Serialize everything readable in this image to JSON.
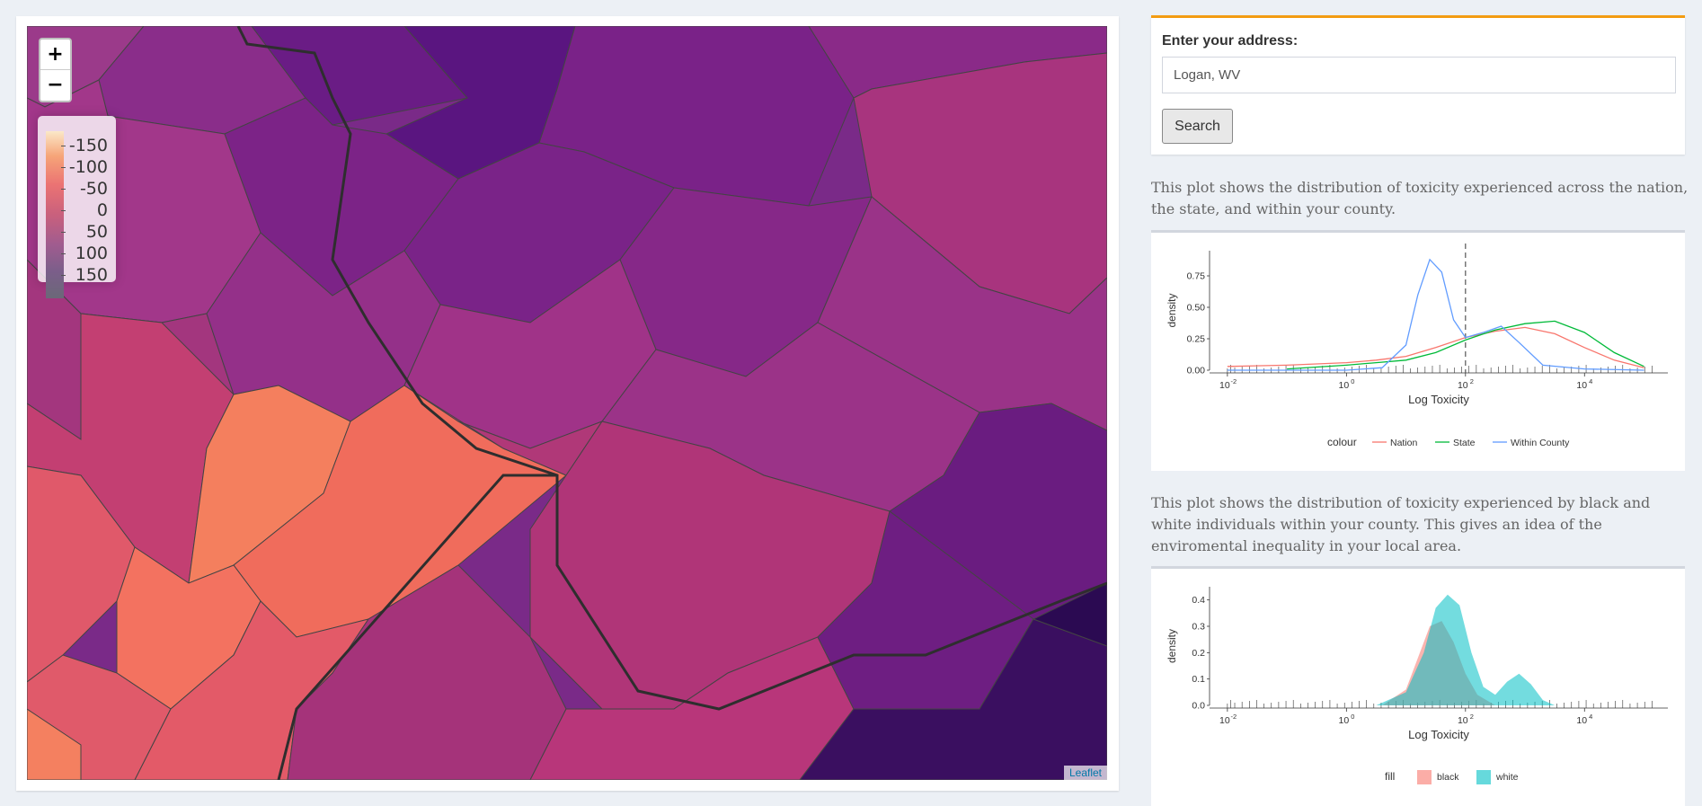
{
  "map": {
    "legend_labels": [
      "-150",
      "-100",
      "-50",
      "0",
      "50",
      "100",
      "150"
    ],
    "zoom_in_label": "+",
    "zoom_out_label": "−",
    "attribution": "Leaflet",
    "colors": {
      "low": "#fbe8c8",
      "high": "#6b6878"
    }
  },
  "search": {
    "label": "Enter your address:",
    "value": "Logan, WV",
    "button_label": "Search"
  },
  "plot1": {
    "description": "This plot shows the distribution of toxicity experienced across the nation, the state, and within your county.",
    "chart_data": {
      "type": "line",
      "xlabel": "Log Toxicity",
      "ylabel": "density",
      "x_ticks": [
        "10",
        "10",
        "10",
        "10"
      ],
      "x_tick_exponents": [
        "-2",
        "0",
        "2",
        "4"
      ],
      "y_ticks": [
        "0.00",
        "0.25",
        "0.50",
        "0.75"
      ],
      "ylim": [
        0,
        0.95
      ],
      "legend_title": "colour",
      "series": [
        {
          "name": "Nation",
          "color": "#f8766d",
          "log_x": [
            -2,
            -1,
            0,
            0.5,
            1,
            1.5,
            2,
            2.5,
            3,
            3.5,
            4,
            4.5,
            5
          ],
          "y": [
            0.03,
            0.04,
            0.06,
            0.08,
            0.11,
            0.18,
            0.26,
            0.31,
            0.34,
            0.29,
            0.18,
            0.08,
            0.02
          ]
        },
        {
          "name": "State",
          "color": "#00ba38",
          "log_x": [
            -1,
            0,
            0.5,
            1,
            1.5,
            2,
            2.5,
            3,
            3.5,
            4,
            4.5,
            5
          ],
          "y": [
            0.01,
            0.04,
            0.06,
            0.08,
            0.14,
            0.24,
            0.32,
            0.37,
            0.39,
            0.3,
            0.14,
            0.03
          ]
        },
        {
          "name": "Within County",
          "color": "#619cff",
          "log_x": [
            -2,
            -1,
            0,
            0.6,
            1.0,
            1.2,
            1.4,
            1.6,
            1.8,
            2.0,
            2.3,
            2.6,
            2.9,
            3.3,
            4,
            5
          ],
          "y": [
            0.0,
            0.0,
            0.0,
            0.02,
            0.2,
            0.6,
            0.88,
            0.78,
            0.4,
            0.26,
            0.3,
            0.35,
            0.22,
            0.04,
            0.01,
            0.0
          ]
        }
      ],
      "vline_log_x": 2
    }
  },
  "plot2": {
    "description": "This plot shows the distribution of toxicity experienced by black and white individuals within your county. This gives an idea of the enviromental inequality in your local area.",
    "chart_data": {
      "type": "area",
      "xlabel": "Log Toxicity",
      "ylabel": "density",
      "x_ticks": [
        "10",
        "10",
        "10",
        "10"
      ],
      "x_tick_exponents": [
        "-2",
        "0",
        "2",
        "4"
      ],
      "y_ticks": [
        "0.0",
        "0.1",
        "0.2",
        "0.3",
        "0.4"
      ],
      "ylim": [
        0,
        0.45
      ],
      "legend_title": "fill",
      "series": [
        {
          "name": "black",
          "color": "#f8766d",
          "log_x": [
            0.6,
            1.0,
            1.2,
            1.4,
            1.6,
            1.8,
            2.0,
            2.2,
            2.5
          ],
          "y": [
            0.0,
            0.06,
            0.18,
            0.3,
            0.32,
            0.24,
            0.12,
            0.04,
            0.0
          ]
        },
        {
          "name": "white",
          "color": "#00bfc4",
          "log_x": [
            0.5,
            1.0,
            1.3,
            1.5,
            1.7,
            1.9,
            2.1,
            2.3,
            2.5,
            2.7,
            2.9,
            3.1,
            3.3,
            3.5
          ],
          "y": [
            0.0,
            0.05,
            0.2,
            0.37,
            0.42,
            0.38,
            0.2,
            0.07,
            0.04,
            0.09,
            0.12,
            0.08,
            0.02,
            0.0
          ]
        }
      ]
    }
  }
}
